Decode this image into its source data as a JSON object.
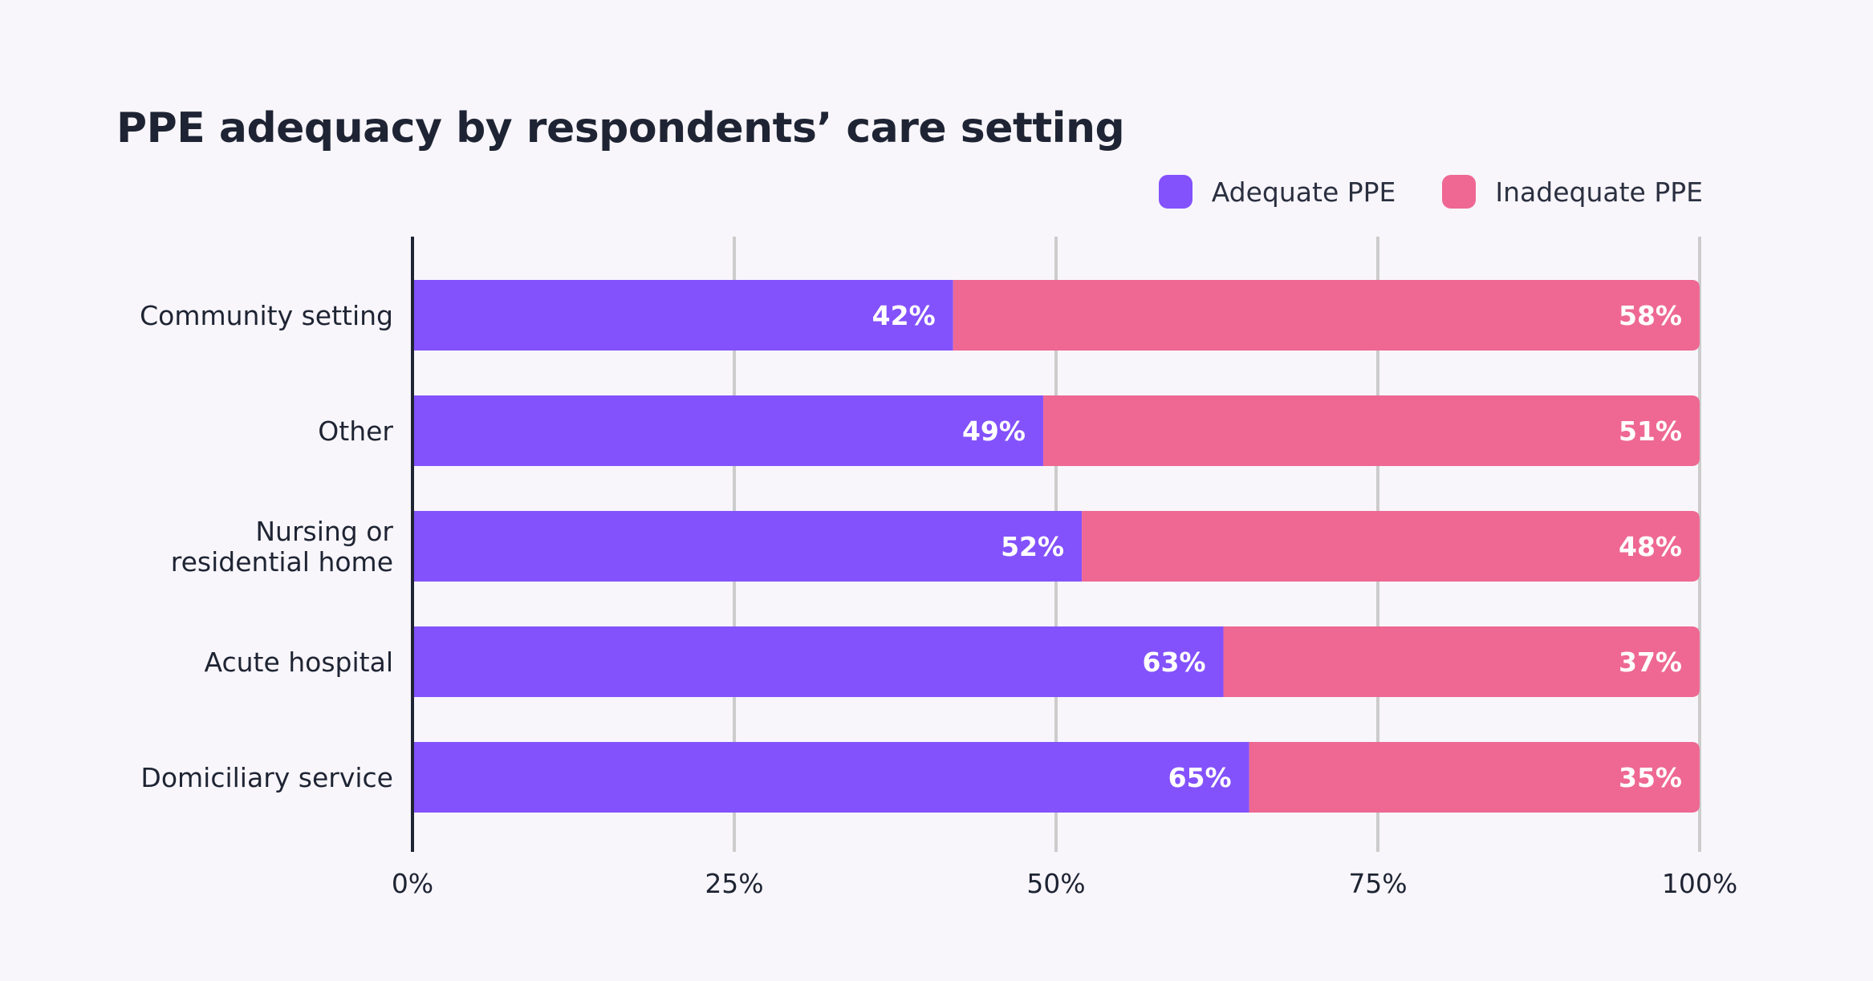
{
  "title": "PPE adequacy by respondents’ care setting",
  "legend": [
    {
      "label": "Adequate PPE",
      "color": "#8352fc"
    },
    {
      "label": "Inadequate PPE",
      "color": "#ee6893"
    }
  ],
  "chart_data": {
    "type": "bar",
    "orientation": "horizontal",
    "stacked": true,
    "title": "PPE adequacy by respondents’ care setting",
    "categories": [
      [
        "Community setting"
      ],
      [
        "Other"
      ],
      [
        "Nursing or",
        "residential home"
      ],
      [
        "Acute hospital"
      ],
      [
        "Domiciliary service"
      ]
    ],
    "series": [
      {
        "name": "Adequate PPE",
        "color": "#8352fc",
        "values": [
          42,
          49,
          52,
          63,
          65
        ],
        "labels": [
          "42%",
          "49%",
          "52%",
          "63%",
          "65%"
        ]
      },
      {
        "name": "Inadequate PPE",
        "color": "#ee6893",
        "values": [
          58,
          51,
          48,
          37,
          35
        ],
        "labels": [
          "58%",
          "51%",
          "48%",
          "37%",
          "35%"
        ]
      }
    ],
    "xlim": [
      0,
      100
    ],
    "xticks": [
      0,
      25,
      50,
      75,
      100
    ],
    "xtick_labels": [
      "0%",
      "25%",
      "50%",
      "75%",
      "100%"
    ],
    "grid": true,
    "legend_position": "top-right"
  }
}
